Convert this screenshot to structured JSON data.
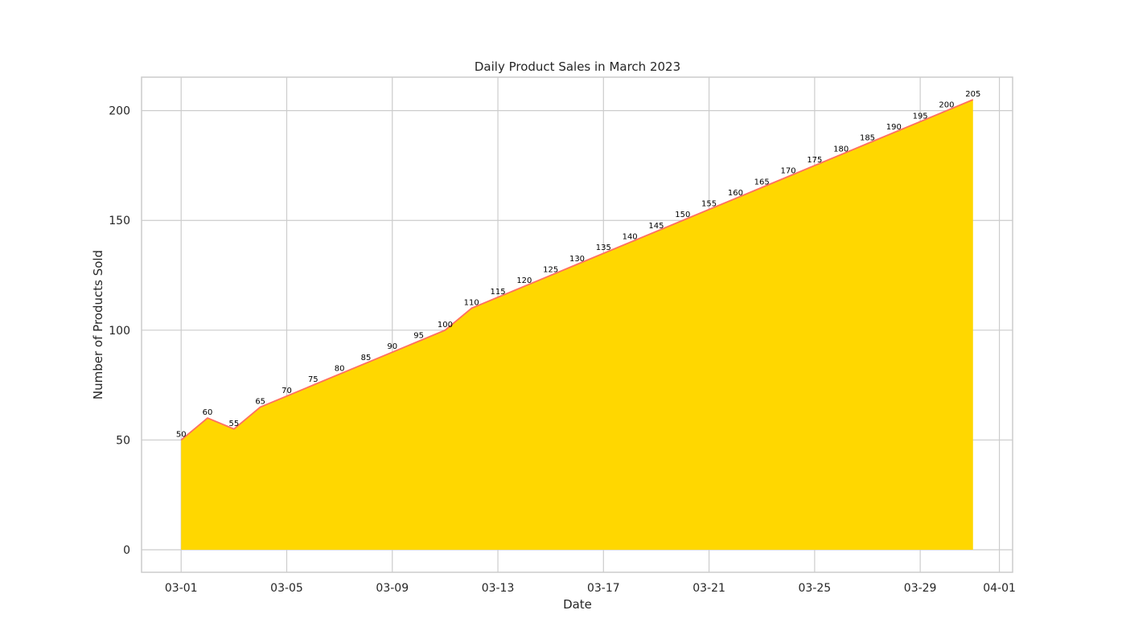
{
  "chart_data": {
    "type": "area",
    "title": "Daily Product Sales in March 2023",
    "xlabel": "Date",
    "ylabel": "Number of Products Sold",
    "x": [
      "2023-03-01",
      "2023-03-02",
      "2023-03-03",
      "2023-03-04",
      "2023-03-05",
      "2023-03-06",
      "2023-03-07",
      "2023-03-08",
      "2023-03-09",
      "2023-03-10",
      "2023-03-11",
      "2023-03-12",
      "2023-03-13",
      "2023-03-14",
      "2023-03-15",
      "2023-03-16",
      "2023-03-17",
      "2023-03-18",
      "2023-03-19",
      "2023-03-20",
      "2023-03-21",
      "2023-03-22",
      "2023-03-23",
      "2023-03-24",
      "2023-03-25",
      "2023-03-26",
      "2023-03-27",
      "2023-03-28",
      "2023-03-29",
      "2023-03-30",
      "2023-03-31"
    ],
    "series": [
      {
        "values": [
          50,
          60,
          55,
          65,
          70,
          75,
          80,
          85,
          90,
          95,
          100,
          110,
          115,
          120,
          125,
          130,
          135,
          140,
          145,
          150,
          155,
          160,
          165,
          170,
          175,
          180,
          185,
          190,
          195,
          200,
          205
        ],
        "fill_color": "#FFD700",
        "line_color": "#FF6F61"
      }
    ],
    "xticks": [
      {
        "date": "2023-03-01",
        "label": "03-01"
      },
      {
        "date": "2023-03-05",
        "label": "03-05"
      },
      {
        "date": "2023-03-09",
        "label": "03-09"
      },
      {
        "date": "2023-03-13",
        "label": "03-13"
      },
      {
        "date": "2023-03-17",
        "label": "03-17"
      },
      {
        "date": "2023-03-21",
        "label": "03-21"
      },
      {
        "date": "2023-03-25",
        "label": "03-25"
      },
      {
        "date": "2023-03-29",
        "label": "03-29"
      },
      {
        "date": "2023-04-01",
        "label": "04-01"
      }
    ],
    "yticks": [
      0,
      50,
      100,
      150,
      200
    ],
    "xlim": [
      "2023-02-27T12:00",
      "2023-04-01T12:00"
    ],
    "ylim": [
      -10.25,
      215.25
    ],
    "grid": true,
    "colors": {
      "grid": "#CCCCCC",
      "spine": "#CCCCCC",
      "text": "#262626"
    }
  }
}
